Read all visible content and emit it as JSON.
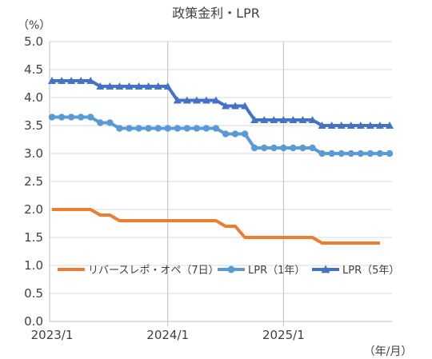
{
  "chart_data": {
    "type": "line",
    "title": "政策金利・LPR",
    "y_unit": "（%）",
    "x_unit": "（年/月）",
    "ylim": [
      0.0,
      5.0
    ],
    "y_ticks": [
      "0.0",
      "0.5",
      "1.0",
      "1.5",
      "2.0",
      "2.5",
      "3.0",
      "3.5",
      "4.0",
      "4.5",
      "5.0"
    ],
    "x_ticks": [
      "2023/1",
      "2024/1",
      "2025/1"
    ],
    "x": [
      "2023/1",
      "2023/2",
      "2023/3",
      "2023/4",
      "2023/5",
      "2023/6",
      "2023/7",
      "2023/8",
      "2023/9",
      "2023/10",
      "2023/11",
      "2023/12",
      "2024/1",
      "2024/2",
      "2024/3",
      "2024/4",
      "2024/5",
      "2024/6",
      "2024/7",
      "2024/8",
      "2024/9",
      "2024/10",
      "2024/11",
      "2024/12",
      "2025/1",
      "2025/2",
      "2025/3",
      "2025/4",
      "2025/5",
      "2025/6",
      "2025/7",
      "2025/8",
      "2025/9",
      "2025/10",
      "2025/11",
      "2025/12"
    ],
    "grid": "horizontal",
    "legend_position": "bottom-inside",
    "series": [
      {
        "name": "リバースレポ・オペ（7日）",
        "color": "#ED7D31",
        "marker": "none",
        "values": [
          2.0,
          2.0,
          2.0,
          2.0,
          2.0,
          1.9,
          1.9,
          1.8,
          1.8,
          1.8,
          1.8,
          1.8,
          1.8,
          1.8,
          1.8,
          1.8,
          1.8,
          1.8,
          1.7,
          1.7,
          1.5,
          1.5,
          1.5,
          1.5,
          1.5,
          1.5,
          1.5,
          1.5,
          1.4,
          1.4,
          1.4,
          1.4,
          1.4,
          1.4,
          1.4,
          null
        ]
      },
      {
        "name": "LPR（1年）",
        "color": "#5B9BD5",
        "marker": "circle",
        "values": [
          3.65,
          3.65,
          3.65,
          3.65,
          3.65,
          3.55,
          3.55,
          3.45,
          3.45,
          3.45,
          3.45,
          3.45,
          3.45,
          3.45,
          3.45,
          3.45,
          3.45,
          3.45,
          3.35,
          3.35,
          3.35,
          3.1,
          3.1,
          3.1,
          3.1,
          3.1,
          3.1,
          3.1,
          3.0,
          3.0,
          3.0,
          3.0,
          3.0,
          3.0,
          3.0,
          3.0
        ]
      },
      {
        "name": "LPR（5年）",
        "color": "#4472C4",
        "marker": "triangle",
        "values": [
          4.3,
          4.3,
          4.3,
          4.3,
          4.3,
          4.2,
          4.2,
          4.2,
          4.2,
          4.2,
          4.2,
          4.2,
          4.2,
          3.95,
          3.95,
          3.95,
          3.95,
          3.95,
          3.85,
          3.85,
          3.85,
          3.6,
          3.6,
          3.6,
          3.6,
          3.6,
          3.6,
          3.6,
          3.5,
          3.5,
          3.5,
          3.5,
          3.5,
          3.5,
          3.5,
          3.5
        ]
      }
    ]
  }
}
